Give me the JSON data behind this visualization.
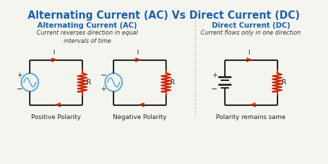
{
  "title": "Alternating Current (AC) Vs Direct Current (DC)",
  "title_color": "#1a5fb4",
  "bg_color": "#f5f5f0",
  "ac_header": "Alternating Current (AC)",
  "dc_header": "Direct Current (DC)",
  "header_color": "#1a5fb4",
  "ac_desc": "Current reverses direction in equal\nintervals of time",
  "dc_desc": "Current flows only in one direction",
  "desc_color": "#333333",
  "labels": [
    "Positive Polarity",
    "Negative Polarity",
    "Polarity remains same"
  ],
  "label_color": "#222222",
  "resistor_color": "#cc2200",
  "ac_source_color": "#5aade0",
  "wire_color": "#222222",
  "divider_color": "#aaaaaa"
}
